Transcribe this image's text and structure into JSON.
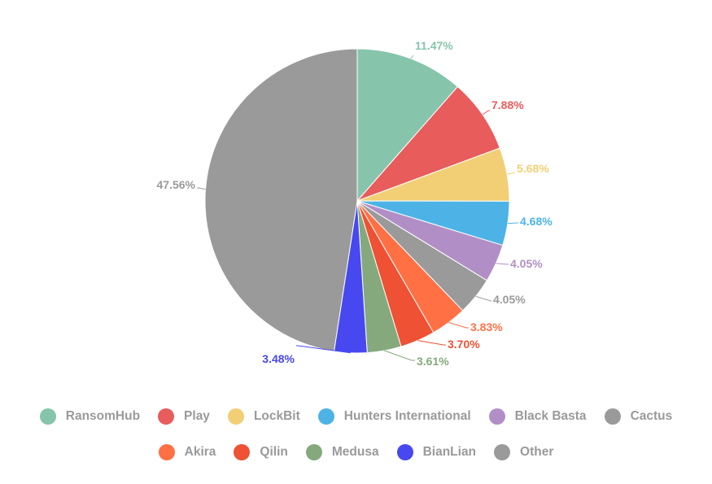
{
  "chart_data": {
    "type": "pie",
    "title": "",
    "legend_position": "bottom",
    "slices": [
      {
        "label": "RansomHub",
        "value": 11.47,
        "display": "11.47%",
        "color": "#86c5ab"
      },
      {
        "label": "Play",
        "value": 7.88,
        "display": "7.88%",
        "color": "#e85c5c"
      },
      {
        "label": "LockBit",
        "value": 5.68,
        "display": "5.68%",
        "color": "#f2cf75"
      },
      {
        "label": "Hunters International",
        "value": 4.68,
        "display": "4.68%",
        "color": "#4db3e6"
      },
      {
        "label": "Black Basta",
        "value": 4.05,
        "display": "4.05%",
        "color": "#b18fc6"
      },
      {
        "label": "Cactus",
        "value": 4.05,
        "display": "4.05%",
        "color": "#9a9a9a"
      },
      {
        "label": "Akira",
        "value": 3.83,
        "display": "3.83%",
        "color": "#ff7044"
      },
      {
        "label": "Qilin",
        "value": 3.7,
        "display": "3.70%",
        "color": "#ee5133"
      },
      {
        "label": "Medusa",
        "value": 3.61,
        "display": "3.61%",
        "color": "#85a97d"
      },
      {
        "label": "BianLian",
        "value": 3.48,
        "display": "3.48%",
        "color": "#4848f0"
      },
      {
        "label": "Other",
        "value": 47.56,
        "display": "47.56%",
        "color": "#9a9a9a"
      }
    ]
  }
}
